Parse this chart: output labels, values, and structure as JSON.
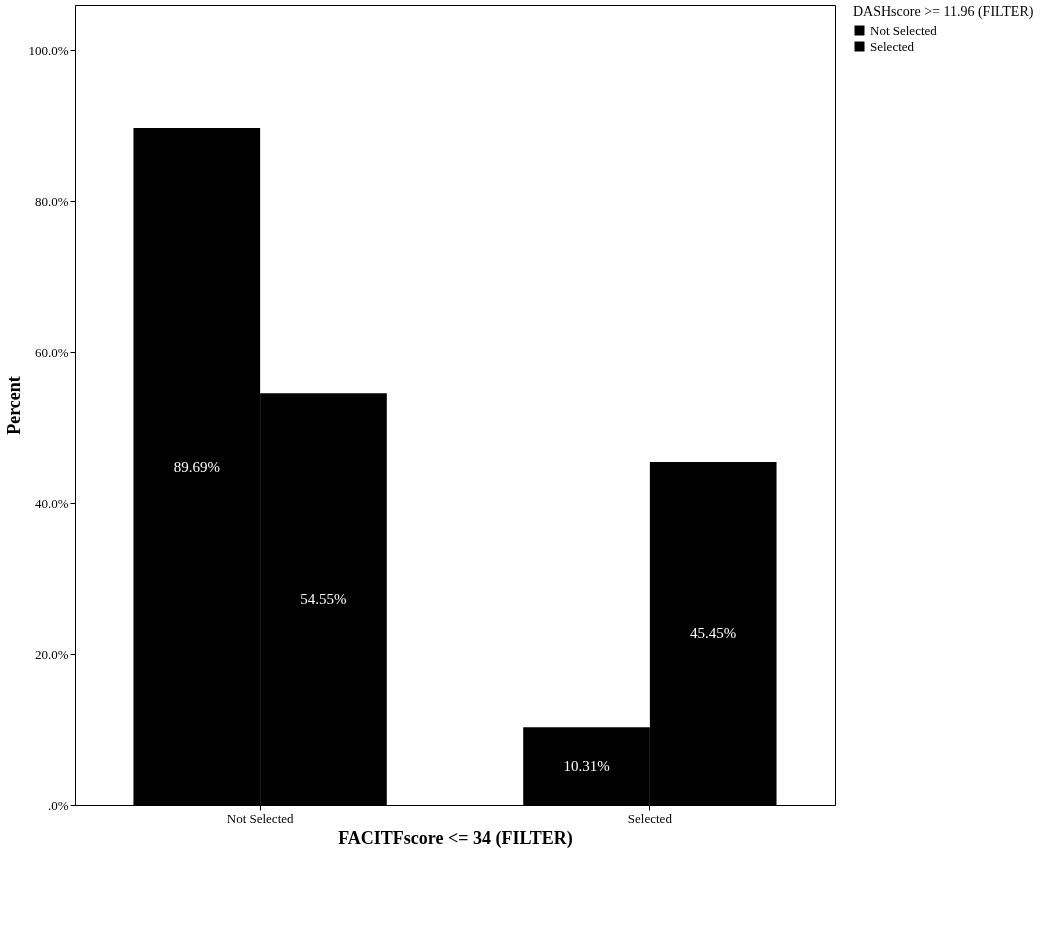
{
  "chart_data": {
    "type": "bar",
    "xlabel": "FACITFscore <= 34 (FILTER)",
    "ylabel": "Percent",
    "legend_title": "DASHscore >= 11.96 (FILTER)",
    "categories": [
      "Not Selected",
      "Selected"
    ],
    "series": [
      {
        "name": "Not Selected",
        "color": "#000000",
        "values": [
          89.69,
          10.31
        ],
        "value_labels": [
          "89.69%",
          "10.31%"
        ]
      },
      {
        "name": "Selected",
        "color": "#000000",
        "values": [
          54.55,
          45.45
        ],
        "value_labels": [
          "54.55%",
          "45.45%"
        ]
      }
    ],
    "ylim": [
      0,
      106
    ],
    "yticks": [
      {
        "value": 0,
        "label": ".0%"
      },
      {
        "value": 20,
        "label": "20.0%"
      },
      {
        "value": 40,
        "label": "40.0%"
      },
      {
        "value": 60,
        "label": "60.0%"
      },
      {
        "value": 80,
        "label": "80.0%"
      },
      {
        "value": 100,
        "label": "100.0%"
      }
    ],
    "grid": false,
    "legend": "top right"
  }
}
